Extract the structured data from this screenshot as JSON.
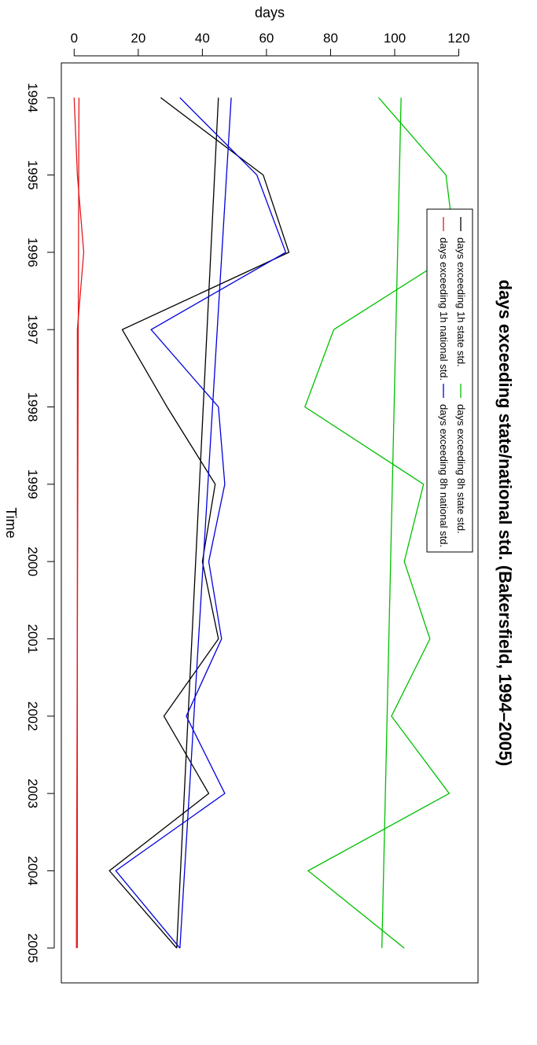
{
  "chart_data": {
    "type": "line",
    "title": "days exceeding state/national std. (Bakersfield, 1994–2005)",
    "xlabel": "Time",
    "ylabel": "days",
    "xlim": [
      1993.55,
      2005.45
    ],
    "ylim": [
      -4,
      126
    ],
    "x_ticks": [
      1994,
      1995,
      1996,
      1997,
      1998,
      1999,
      2000,
      2001,
      2002,
      2003,
      2004,
      2005
    ],
    "x_tick_labels": [
      "1994",
      "1995",
      "1996",
      "1997",
      "1998",
      "1999",
      "2000",
      "2001",
      "2002",
      "2003",
      "2004",
      "2005"
    ],
    "y_ticks": [
      0,
      20,
      40,
      60,
      80,
      100,
      120
    ],
    "y_tick_labels": [
      "0",
      "20",
      "40",
      "60",
      "80",
      "100",
      "120"
    ],
    "x": [
      1994,
      1995,
      1996,
      1997,
      1998,
      1999,
      2000,
      2001,
      2002,
      2003,
      2004,
      2005
    ],
    "series": [
      {
        "name": "days exceeding 1h state std.",
        "color": "#000000",
        "values": [
          27,
          59,
          67,
          15,
          29,
          44,
          40,
          45,
          28,
          42,
          11,
          32
        ],
        "trend": [
          45,
          32
        ]
      },
      {
        "name": "days exceeding 1h national std.",
        "color": "#e31a1c",
        "values": [
          0,
          1,
          3,
          1,
          1,
          1,
          1,
          1,
          1,
          1,
          1,
          1
        ],
        "trend": [
          1.5,
          0.7
        ]
      },
      {
        "name": "days exceeding 8h state std.",
        "color": "#00c000",
        "values": [
          95,
          116,
          119,
          81,
          72,
          109,
          103,
          111,
          99,
          117,
          73,
          103
        ],
        "trend": [
          102,
          96
        ]
      },
      {
        "name": "days exceeding 8h national std.",
        "color": "#0000dd",
        "values": [
          33,
          57,
          66,
          24,
          45,
          47,
          42,
          46,
          35,
          47,
          13,
          33
        ],
        "trend": [
          49,
          33
        ]
      }
    ],
    "legend_position": "top-left",
    "grid": false
  }
}
